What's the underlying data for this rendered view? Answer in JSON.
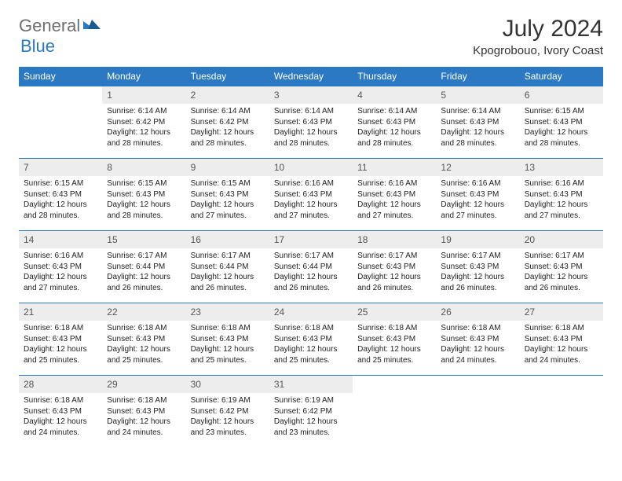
{
  "brand": {
    "part1": "General",
    "part2": "Blue"
  },
  "title": "July 2024",
  "location": "Kpogrobouo, Ivory Coast",
  "colors": {
    "header_bg": "#2b79c2",
    "header_text": "#ffffff",
    "daynum_bg": "#ededed",
    "border": "#2b79c2",
    "text": "#222222",
    "brand_gray": "#6f6f6f",
    "brand_blue": "#2b79c2"
  },
  "dow": [
    "Sunday",
    "Monday",
    "Tuesday",
    "Wednesday",
    "Thursday",
    "Friday",
    "Saturday"
  ],
  "weeks": [
    {
      "nums": [
        "",
        "1",
        "2",
        "3",
        "4",
        "5",
        "6"
      ],
      "cells": [
        null,
        {
          "sr": "6:14 AM",
          "ss": "6:42 PM",
          "dl": "12 hours and 28 minutes."
        },
        {
          "sr": "6:14 AM",
          "ss": "6:42 PM",
          "dl": "12 hours and 28 minutes."
        },
        {
          "sr": "6:14 AM",
          "ss": "6:43 PM",
          "dl": "12 hours and 28 minutes."
        },
        {
          "sr": "6:14 AM",
          "ss": "6:43 PM",
          "dl": "12 hours and 28 minutes."
        },
        {
          "sr": "6:14 AM",
          "ss": "6:43 PM",
          "dl": "12 hours and 28 minutes."
        },
        {
          "sr": "6:15 AM",
          "ss": "6:43 PM",
          "dl": "12 hours and 28 minutes."
        }
      ]
    },
    {
      "nums": [
        "7",
        "8",
        "9",
        "10",
        "11",
        "12",
        "13"
      ],
      "cells": [
        {
          "sr": "6:15 AM",
          "ss": "6:43 PM",
          "dl": "12 hours and 28 minutes."
        },
        {
          "sr": "6:15 AM",
          "ss": "6:43 PM",
          "dl": "12 hours and 28 minutes."
        },
        {
          "sr": "6:15 AM",
          "ss": "6:43 PM",
          "dl": "12 hours and 27 minutes."
        },
        {
          "sr": "6:16 AM",
          "ss": "6:43 PM",
          "dl": "12 hours and 27 minutes."
        },
        {
          "sr": "6:16 AM",
          "ss": "6:43 PM",
          "dl": "12 hours and 27 minutes."
        },
        {
          "sr": "6:16 AM",
          "ss": "6:43 PM",
          "dl": "12 hours and 27 minutes."
        },
        {
          "sr": "6:16 AM",
          "ss": "6:43 PM",
          "dl": "12 hours and 27 minutes."
        }
      ]
    },
    {
      "nums": [
        "14",
        "15",
        "16",
        "17",
        "18",
        "19",
        "20"
      ],
      "cells": [
        {
          "sr": "6:16 AM",
          "ss": "6:43 PM",
          "dl": "12 hours and 27 minutes."
        },
        {
          "sr": "6:17 AM",
          "ss": "6:44 PM",
          "dl": "12 hours and 26 minutes."
        },
        {
          "sr": "6:17 AM",
          "ss": "6:44 PM",
          "dl": "12 hours and 26 minutes."
        },
        {
          "sr": "6:17 AM",
          "ss": "6:44 PM",
          "dl": "12 hours and 26 minutes."
        },
        {
          "sr": "6:17 AM",
          "ss": "6:43 PM",
          "dl": "12 hours and 26 minutes."
        },
        {
          "sr": "6:17 AM",
          "ss": "6:43 PM",
          "dl": "12 hours and 26 minutes."
        },
        {
          "sr": "6:17 AM",
          "ss": "6:43 PM",
          "dl": "12 hours and 26 minutes."
        }
      ]
    },
    {
      "nums": [
        "21",
        "22",
        "23",
        "24",
        "25",
        "26",
        "27"
      ],
      "cells": [
        {
          "sr": "6:18 AM",
          "ss": "6:43 PM",
          "dl": "12 hours and 25 minutes."
        },
        {
          "sr": "6:18 AM",
          "ss": "6:43 PM",
          "dl": "12 hours and 25 minutes."
        },
        {
          "sr": "6:18 AM",
          "ss": "6:43 PM",
          "dl": "12 hours and 25 minutes."
        },
        {
          "sr": "6:18 AM",
          "ss": "6:43 PM",
          "dl": "12 hours and 25 minutes."
        },
        {
          "sr": "6:18 AM",
          "ss": "6:43 PM",
          "dl": "12 hours and 25 minutes."
        },
        {
          "sr": "6:18 AM",
          "ss": "6:43 PM",
          "dl": "12 hours and 24 minutes."
        },
        {
          "sr": "6:18 AM",
          "ss": "6:43 PM",
          "dl": "12 hours and 24 minutes."
        }
      ]
    },
    {
      "nums": [
        "28",
        "29",
        "30",
        "31",
        "",
        "",
        ""
      ],
      "cells": [
        {
          "sr": "6:18 AM",
          "ss": "6:43 PM",
          "dl": "12 hours and 24 minutes."
        },
        {
          "sr": "6:18 AM",
          "ss": "6:43 PM",
          "dl": "12 hours and 24 minutes."
        },
        {
          "sr": "6:19 AM",
          "ss": "6:42 PM",
          "dl": "12 hours and 23 minutes."
        },
        {
          "sr": "6:19 AM",
          "ss": "6:42 PM",
          "dl": "12 hours and 23 minutes."
        },
        null,
        null,
        null
      ]
    }
  ],
  "labels": {
    "sunrise": "Sunrise:",
    "sunset": "Sunset:",
    "daylight": "Daylight:"
  }
}
